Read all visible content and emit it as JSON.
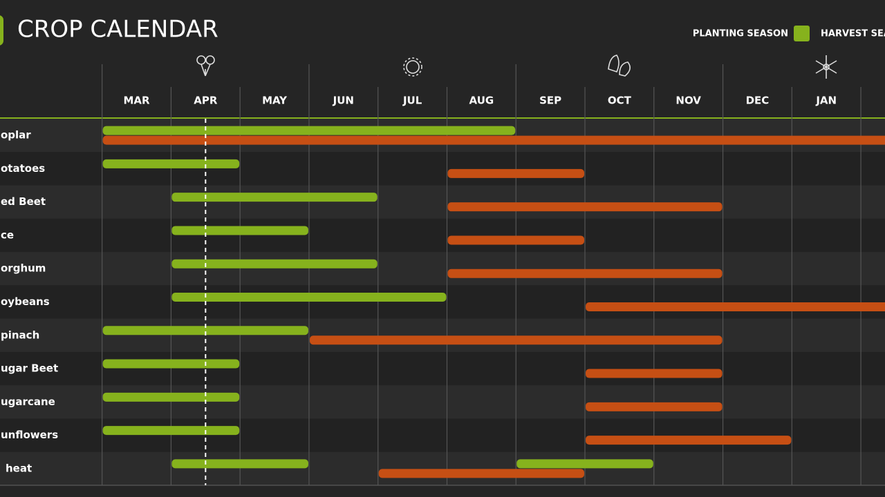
{
  "chart_data": {
    "type": "gantt",
    "title": "CROP CALENDAR",
    "series": [
      {
        "name": "PLANTING SEASON",
        "color": "#86b21d"
      },
      {
        "name": "HARVEST SEA",
        "color": "#c64f14"
      }
    ],
    "categories": [
      "MAR",
      "APR",
      "MAY",
      "JUN",
      "JUL",
      "AUG",
      "SEP",
      "OCT",
      "NOV",
      "DEC",
      "JAN"
    ],
    "xlim": [
      -1.48,
      11.35
    ],
    "xticks": [
      0,
      1,
      2,
      3,
      4,
      5,
      6,
      7,
      8,
      9,
      10,
      11
    ],
    "marker": 1.5,
    "rows": [
      {
        "label": "oplar",
        "planting": [
          [
            0,
            6
          ]
        ],
        "harvest": [
          [
            0,
            12
          ]
        ]
      },
      {
        "label": "otatoes",
        "planting": [
          [
            0,
            2
          ]
        ],
        "harvest": [
          [
            5,
            7
          ]
        ]
      },
      {
        "label": "ed Beet",
        "planting": [
          [
            1,
            4
          ]
        ],
        "harvest": [
          [
            5,
            9
          ]
        ]
      },
      {
        "label": "ce",
        "planting": [
          [
            1,
            3
          ]
        ],
        "harvest": [
          [
            5,
            7
          ]
        ]
      },
      {
        "label": "orghum",
        "planting": [
          [
            1,
            4
          ]
        ],
        "harvest": [
          [
            5,
            9
          ]
        ]
      },
      {
        "label": "oybeans",
        "planting": [
          [
            1,
            5
          ]
        ],
        "harvest": [
          [
            7,
            12
          ]
        ]
      },
      {
        "label": "pinach",
        "planting": [
          [
            0,
            3
          ]
        ],
        "harvest": [
          [
            3,
            9
          ]
        ]
      },
      {
        "label": "ugar Beet",
        "planting": [
          [
            0,
            2
          ]
        ],
        "harvest": [
          [
            7,
            9
          ]
        ]
      },
      {
        "label": "ugarcane",
        "planting": [
          [
            0,
            2
          ]
        ],
        "harvest": [
          [
            7,
            9
          ]
        ]
      },
      {
        "label": "unflowers",
        "planting": [
          [
            0,
            2
          ]
        ],
        "harvest": [
          [
            7,
            10
          ]
        ]
      },
      {
        "label": "heat",
        "planting": [
          [
            1,
            3
          ],
          [
            6,
            8
          ]
        ],
        "harvest": [
          [
            4,
            7
          ]
        ]
      }
    ]
  }
}
